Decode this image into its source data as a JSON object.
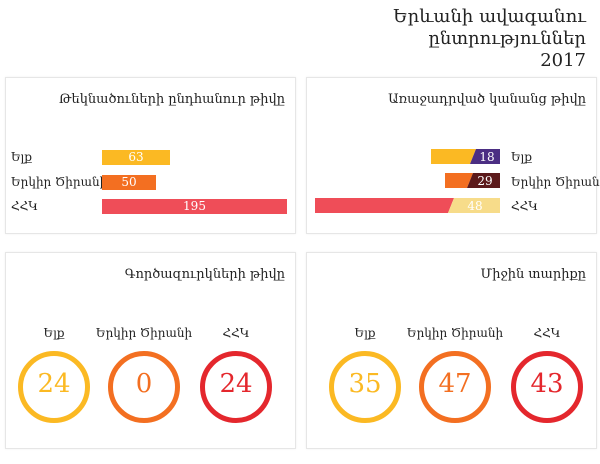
{
  "title": {
    "line1": "Երևանի ավագանու",
    "line2": "ընտրություններ",
    "line3": "2017"
  },
  "colors": {
    "elq": "#fbb923",
    "erkir": "#f36f21",
    "hhk": "#ef4d58",
    "elq_elected": "#4b2e83",
    "erkir_elected": "#5c1a1b",
    "hhk_elected": "#f7dc8a",
    "hhk_circle": "#e4272d"
  },
  "panels": {
    "nominees": {
      "title": "Թեկնածուների ընդհանուր թիվը",
      "rows": [
        {
          "party": "Ելք",
          "value": "63"
        },
        {
          "party": "Երկիր Ծիրանի",
          "value": "50"
        },
        {
          "party": "ՀՀԿ",
          "value": "195"
        }
      ]
    },
    "elected": {
      "title": "Առաջադրված կանանց թիվը",
      "rows": [
        {
          "party": "Ելք",
          "value": "18"
        },
        {
          "party": "Երկիր Ծիրանի",
          "value": "29"
        },
        {
          "party": "ՀՀԿ",
          "value": "48"
        }
      ]
    },
    "entrepreneurs": {
      "title": "Գործազուրկների թիվը",
      "items": [
        {
          "party": "Ելք",
          "value": "24"
        },
        {
          "party": "Երկիր Ծիրանի",
          "value": "0"
        },
        {
          "party": "ՀՀԿ",
          "value": "24"
        }
      ]
    },
    "age": {
      "title": "Միջին տարիքը",
      "items": [
        {
          "party": "Ելք",
          "value": "35"
        },
        {
          "party": "Երկիր Ծիրանի",
          "value": "47"
        },
        {
          "party": "ՀՀԿ",
          "value": "43"
        }
      ]
    }
  },
  "chart_data": [
    {
      "type": "bar",
      "title": "Թեկնածուների ընդհանուր թիվը",
      "categories": [
        "Ելք",
        "Երկիր Ծիրանի",
        "ՀՀԿ"
      ],
      "values": [
        63,
        50,
        195
      ]
    },
    {
      "type": "bar",
      "title": "Առաջադրված կանանց թիվը",
      "categories": [
        "Ելք",
        "Երկիր Ծիրանի",
        "ՀՀԿ"
      ],
      "total": [
        63,
        50,
        195
      ],
      "values": [
        18,
        29,
        48
      ]
    },
    {
      "type": "table",
      "title": "Գործազուրկների թիվը",
      "categories": [
        "Ելք",
        "Երկիր Ծիրանի",
        "ՀՀԿ"
      ],
      "values": [
        24,
        0,
        24
      ]
    },
    {
      "type": "table",
      "title": "Միջին տարիքը",
      "categories": [
        "Ելք",
        "Երկիր Ծիրանի",
        "ՀՀԿ"
      ],
      "values": [
        35,
        47,
        43
      ]
    }
  ]
}
